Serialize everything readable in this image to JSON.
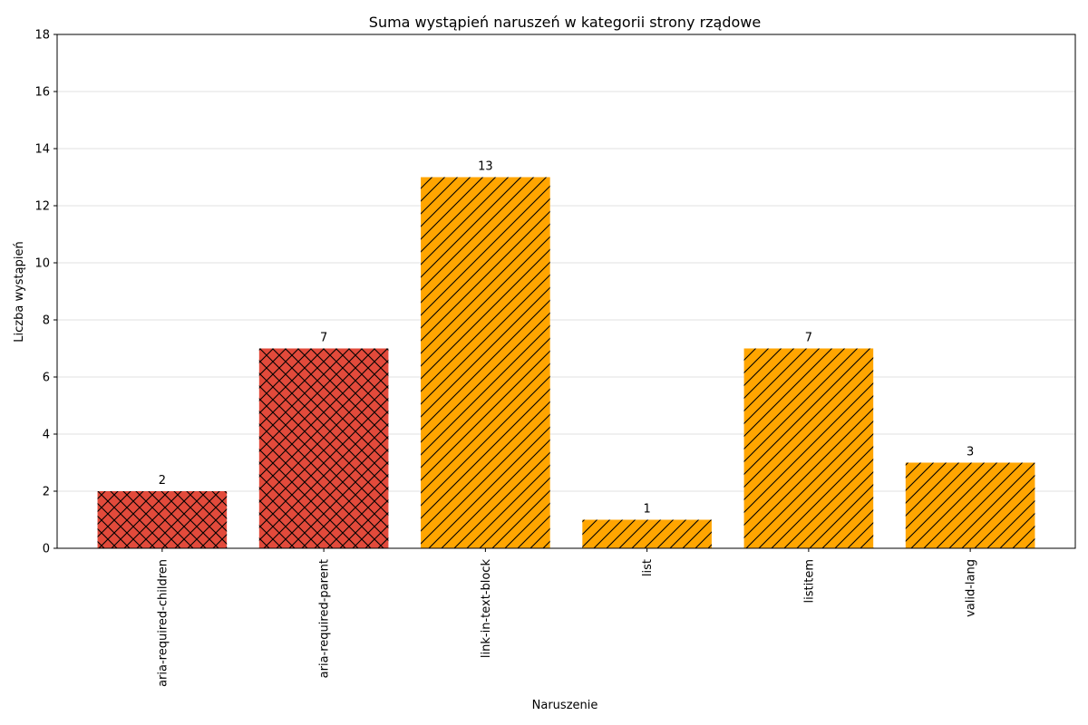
{
  "chart_data": {
    "type": "bar",
    "title": "Suma wystąpień naruszeń w kategorii strony rządowe",
    "xlabel": "Naruszenie",
    "ylabel": "Liczba wystąpień",
    "categories": [
      "aria-required-children",
      "aria-required-parent",
      "link-in-text-block",
      "list",
      "listitem",
      "valid-lang"
    ],
    "values": [
      2,
      7,
      13,
      1,
      7,
      3
    ],
    "colors": [
      "#e24a3b",
      "#e24a3b",
      "#ffa500",
      "#ffa500",
      "#ffa500",
      "#ffa500"
    ],
    "hatches": [
      "cross",
      "cross",
      "diagonal",
      "diagonal",
      "diagonal",
      "diagonal"
    ],
    "ylim": [
      0,
      18
    ],
    "yticks": [
      0,
      2,
      4,
      6,
      8,
      10,
      12,
      14,
      16,
      18
    ],
    "grid": "horizontal",
    "data_labels": true
  }
}
